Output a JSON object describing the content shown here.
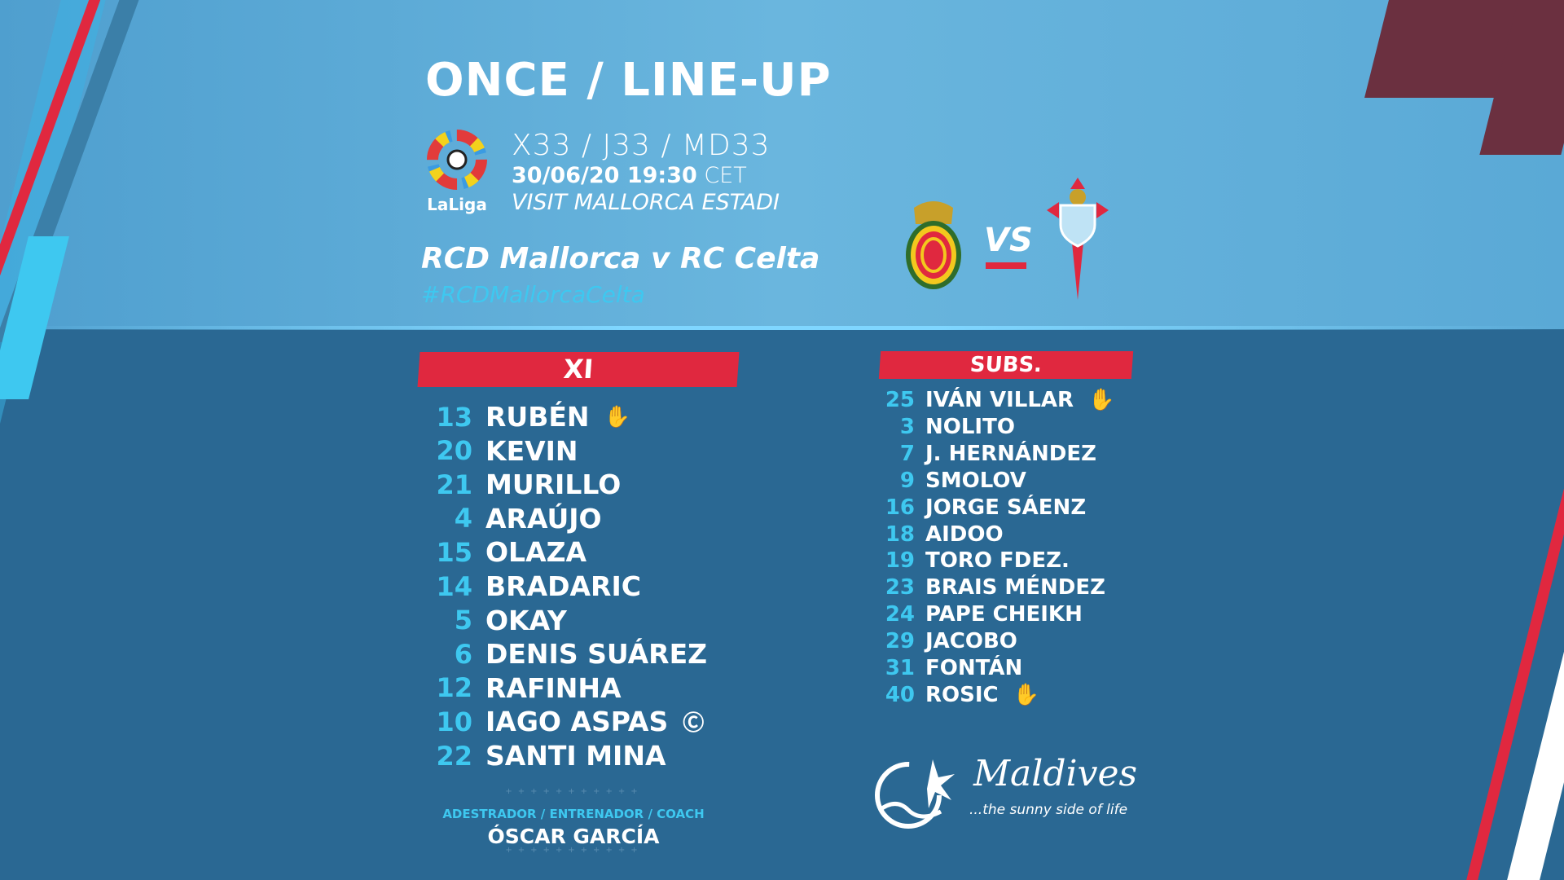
{
  "title": "ONCE / LINE-UP",
  "league": {
    "logo_text": "LaLiga"
  },
  "matchday": "X33 / J33 / MD33",
  "date": "30/06/20 19:30",
  "timezone": "CET",
  "venue": "VISIT MALLORCA ESTADI",
  "match": "RCD Mallorca v RC Celta",
  "hashtag": "#RCDMallorcaCelta",
  "vs": "VS",
  "colors": {
    "accent_red": "#e0283f",
    "accent_cyan": "#3ec8f0",
    "bg_dark": "#2a6893",
    "bg_light": "#5aa9d6"
  },
  "xi": {
    "label": "XI",
    "players": [
      {
        "num": "13",
        "name": "RUBÉN",
        "icon": "goalkeeper-glove-icon"
      },
      {
        "num": "20",
        "name": "KEVIN"
      },
      {
        "num": "21",
        "name": "MURILLO"
      },
      {
        "num": "4",
        "name": "ARAÚJO"
      },
      {
        "num": "15",
        "name": "OLAZA"
      },
      {
        "num": "14",
        "name": "BRADARIC"
      },
      {
        "num": "5",
        "name": "OKAY"
      },
      {
        "num": "6",
        "name": "DENIS SUÁREZ"
      },
      {
        "num": "12",
        "name": "RAFINHA"
      },
      {
        "num": "10",
        "name": "IAGO ASPAS",
        "icon": "captain-armband-icon"
      },
      {
        "num": "22",
        "name": "SANTI MINA"
      }
    ]
  },
  "subs": {
    "label": "SUBS.",
    "players": [
      {
        "num": "25",
        "name": "IVÁN VILLAR",
        "icon": "goalkeeper-glove-icon"
      },
      {
        "num": "3",
        "name": "NOLITO"
      },
      {
        "num": "7",
        "name": "J. HERNÁNDEZ"
      },
      {
        "num": "9",
        "name": "SMOLOV"
      },
      {
        "num": "16",
        "name": "JORGE SÁENZ"
      },
      {
        "num": "18",
        "name": "AIDOO"
      },
      {
        "num": "19",
        "name": "TORO FDEZ."
      },
      {
        "num": "23",
        "name": "BRAIS MÉNDEZ"
      },
      {
        "num": "24",
        "name": "PAPE CHEIKH"
      },
      {
        "num": "29",
        "name": "JACOBO"
      },
      {
        "num": "31",
        "name": "FONTÁN"
      },
      {
        "num": "40",
        "name": "ROSIC",
        "icon": "goalkeeper-glove-icon"
      }
    ]
  },
  "coach": {
    "label": "ADESTRADOR / ENTRENADOR / COACH",
    "name": "ÓSCAR GARCÍA"
  },
  "sponsor": {
    "name": "Maldives",
    "tagline": "...the sunny side of life"
  }
}
